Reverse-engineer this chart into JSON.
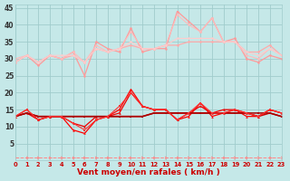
{
  "xlabel": "Vent moyen/en rafales ( km/h )",
  "bg_color": "#c5e8e8",
  "grid_color": "#a0cccc",
  "xlim": [
    0,
    23
  ],
  "ylim": [
    0,
    46
  ],
  "yticks": [
    5,
    10,
    15,
    20,
    25,
    30,
    35,
    40,
    45
  ],
  "xticks": [
    0,
    1,
    2,
    3,
    4,
    5,
    6,
    7,
    8,
    9,
    10,
    11,
    12,
    13,
    14,
    15,
    16,
    17,
    18,
    19,
    20,
    21,
    22,
    23
  ],
  "upper_lines": [
    {
      "color": "#ff9999",
      "lw": 0.9,
      "x": [
        0,
        1,
        2,
        3,
        4,
        5,
        6,
        7,
        8,
        9,
        10,
        11,
        12,
        13,
        14,
        15,
        16,
        17,
        18,
        19,
        20,
        21,
        22,
        23
      ],
      "y": [
        29,
        31,
        28,
        31,
        30,
        32,
        25,
        35,
        33,
        32,
        39,
        32,
        33,
        33,
        44,
        41,
        38,
        42,
        35,
        36,
        30,
        29,
        31,
        30
      ]
    },
    {
      "color": "#ffaaaa",
      "lw": 0.9,
      "x": [
        0,
        1,
        2,
        3,
        4,
        5,
        6,
        7,
        8,
        9,
        10,
        11,
        12,
        13,
        14,
        15,
        16,
        17,
        18,
        19,
        20,
        21,
        22,
        23
      ],
      "y": [
        29,
        31,
        29,
        31,
        30,
        31,
        29,
        33,
        32,
        33,
        34,
        33,
        33,
        34,
        34,
        35,
        35,
        35,
        35,
        35,
        32,
        32,
        34,
        31
      ]
    },
    {
      "color": "#ffbbbb",
      "lw": 0.8,
      "x": [
        0,
        1,
        2,
        3,
        4,
        5,
        6,
        7,
        8,
        9,
        10,
        11,
        12,
        13,
        14,
        15,
        16,
        17,
        18,
        19,
        20,
        21,
        22,
        23
      ],
      "y": [
        30,
        31,
        29,
        31,
        30,
        32,
        29,
        34,
        32,
        33,
        38,
        33,
        33,
        34,
        43,
        40,
        38,
        42,
        35,
        35,
        31,
        30,
        33,
        31
      ]
    },
    {
      "color": "#ffcccc",
      "lw": 0.8,
      "x": [
        0,
        1,
        2,
        3,
        4,
        5,
        6,
        7,
        8,
        9,
        10,
        11,
        12,
        13,
        14,
        15,
        16,
        17,
        18,
        19,
        20,
        21,
        22,
        23
      ],
      "y": [
        29,
        31,
        29,
        31,
        31,
        31,
        29,
        33,
        32,
        33,
        35,
        33,
        33,
        34,
        36,
        36,
        36,
        36,
        35,
        35,
        32,
        31,
        33,
        31
      ]
    }
  ],
  "lower_lines": [
    {
      "color": "#ff0000",
      "lw": 0.9,
      "x": [
        0,
        1,
        2,
        3,
        4,
        5,
        6,
        7,
        8,
        9,
        10,
        11,
        12,
        13,
        14,
        15,
        16,
        17,
        18,
        19,
        20,
        21,
        22,
        23
      ],
      "y": [
        13,
        15,
        12,
        13,
        13,
        9,
        8,
        12,
        13,
        15,
        21,
        16,
        15,
        15,
        12,
        13,
        17,
        13,
        14,
        15,
        13,
        13,
        15,
        14
      ]
    },
    {
      "color": "#ee0000",
      "lw": 0.9,
      "x": [
        0,
        1,
        2,
        3,
        4,
        5,
        6,
        7,
        8,
        9,
        10,
        11,
        12,
        13,
        14,
        15,
        16,
        17,
        18,
        19,
        20,
        21,
        22,
        23
      ],
      "y": [
        13,
        14,
        12,
        13,
        13,
        11,
        10,
        13,
        13,
        14,
        20,
        16,
        15,
        15,
        12,
        14,
        16,
        14,
        15,
        15,
        14,
        13,
        15,
        14
      ]
    },
    {
      "color": "#cc0000",
      "lw": 1.1,
      "x": [
        0,
        1,
        2,
        3,
        4,
        5,
        6,
        7,
        8,
        9,
        10,
        11,
        12,
        13,
        14,
        15,
        16,
        17,
        18,
        19,
        20,
        21,
        22,
        23
      ],
      "y": [
        13,
        14,
        13,
        13,
        13,
        13,
        13,
        13,
        13,
        13,
        13,
        13,
        14,
        14,
        14,
        14,
        14,
        14,
        14,
        14,
        14,
        13,
        14,
        13
      ]
    },
    {
      "color": "#aa0000",
      "lw": 1.1,
      "x": [
        0,
        1,
        2,
        3,
        4,
        5,
        6,
        7,
        8,
        9,
        10,
        11,
        12,
        13,
        14,
        15,
        16,
        17,
        18,
        19,
        20,
        21,
        22,
        23
      ],
      "y": [
        13,
        14,
        13,
        13,
        13,
        13,
        13,
        13,
        13,
        13,
        13,
        13,
        14,
        14,
        14,
        14,
        14,
        14,
        14,
        14,
        14,
        14,
        14,
        13
      ]
    },
    {
      "color": "#ff3333",
      "lw": 0.8,
      "x": [
        0,
        1,
        2,
        3,
        4,
        5,
        6,
        7,
        8,
        9,
        10,
        11,
        12,
        13,
        14,
        15,
        16,
        17,
        18,
        19,
        20,
        21,
        22,
        23
      ],
      "y": [
        13,
        15,
        12,
        13,
        13,
        11,
        9,
        12,
        13,
        16,
        20,
        16,
        15,
        15,
        12,
        14,
        17,
        14,
        14,
        15,
        14,
        13,
        15,
        14
      ]
    }
  ],
  "dash_line": {
    "color": "#ff8888",
    "lw": 0.7,
    "x": [
      0,
      1,
      2,
      3,
      4,
      5,
      6,
      7,
      8,
      9,
      10,
      11,
      12,
      13,
      14,
      15,
      16,
      17,
      18,
      19,
      20,
      21,
      22,
      23
    ],
    "y": [
      1,
      1,
      1,
      1,
      1,
      1,
      1,
      1,
      1,
      1,
      1,
      1,
      1,
      1,
      1,
      1,
      1,
      1,
      1,
      1,
      1,
      1,
      1,
      1
    ]
  }
}
